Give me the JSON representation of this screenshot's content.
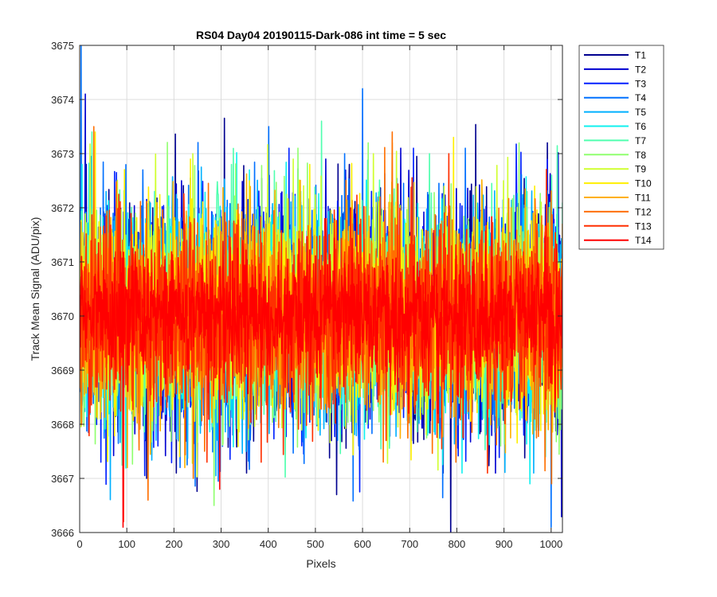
{
  "chart_data": {
    "type": "line",
    "title": "RS04 Day04 20190115-Dark-086 int time = 5 sec",
    "xlabel": "Pixels",
    "ylabel": "Track Mean Signal (ADU/pix)",
    "xlim": [
      0,
      1024
    ],
    "ylim": [
      3666,
      3675
    ],
    "xticks": [
      "0",
      "100",
      "200",
      "300",
      "400",
      "500",
      "600",
      "700",
      "800",
      "900",
      "1000"
    ],
    "yticks": [
      "3666",
      "3667",
      "3668",
      "3669",
      "3670",
      "3671",
      "3672",
      "3673",
      "3674",
      "3675"
    ],
    "grid": true,
    "legend_position": "outside-right-top",
    "series": [
      {
        "name": "T1",
        "color": "#00008f",
        "sigma": 1.0,
        "mean": 3670.0,
        "points": [
          [
            0,
            3670.0
          ],
          [
            14,
            3672.8
          ],
          [
            142,
            3667.0
          ],
          [
            205,
            3667.1
          ],
          [
            354,
            3667.1
          ],
          [
            545,
            3666.7
          ],
          [
            572,
            3672.8
          ],
          [
            771,
            3667.1
          ],
          [
            992,
            3673.2
          ]
        ]
      },
      {
        "name": "T2",
        "color": "#0000d0",
        "sigma": 1.0,
        "mean": 3670.0,
        "points": [
          [
            0,
            3670.0
          ],
          [
            12,
            3674.1
          ],
          [
            216,
            3672.5
          ],
          [
            402,
            3672.6
          ],
          [
            522,
            3672.9
          ],
          [
            681,
            3673.1
          ],
          [
            882,
            3667.1
          ]
        ]
      },
      {
        "name": "T3",
        "color": "#0020ff",
        "sigma": 1.0,
        "mean": 3670.0,
        "points": [
          [
            0,
            3670.0
          ],
          [
            45,
            3667.3
          ],
          [
            166,
            3667.6
          ],
          [
            444,
            3673.1
          ],
          [
            592,
            3667.6
          ],
          [
            708,
            3673.1
          ],
          [
            942,
            3667.8
          ]
        ]
      },
      {
        "name": "T4",
        "color": "#0070ff",
        "sigma": 1.05,
        "mean": 3670.0,
        "points": [
          [
            0,
            3670.0
          ],
          [
            3,
            3675.0
          ],
          [
            134,
            3672.7
          ],
          [
            401,
            3673.5
          ],
          [
            562,
            3673.0
          ],
          [
            600,
            3674.2
          ],
          [
            818,
            3673.1
          ],
          [
            1000,
            3666.1
          ]
        ]
      },
      {
        "name": "T5",
        "color": "#00b0ff",
        "sigma": 1.0,
        "mean": 3670.0,
        "points": [
          [
            0,
            3670.0
          ],
          [
            56,
            3672.3
          ],
          [
            281,
            3667.9
          ],
          [
            510,
            3667.8
          ],
          [
            657,
            3667.6
          ],
          [
            963,
            3667.1
          ]
        ]
      },
      {
        "name": "T6",
        "color": "#10f0ef",
        "sigma": 0.95,
        "mean": 3670.0,
        "points": [
          [
            0,
            3670.0
          ],
          [
            5,
            3672.8
          ],
          [
            360,
            3672.7
          ],
          [
            738,
            3667.8
          ],
          [
            811,
            3667.1
          ],
          [
            955,
            3666.9
          ]
        ]
      },
      {
        "name": "T7",
        "color": "#50ffaf",
        "sigma": 0.95,
        "mean": 3670.0,
        "points": [
          [
            0,
            3670.0
          ],
          [
            26,
            3673.4
          ],
          [
            322,
            3672.8
          ],
          [
            513,
            3673.6
          ],
          [
            742,
            3673.0
          ],
          [
            988,
            3667.4
          ]
        ]
      },
      {
        "name": "T8",
        "color": "#90ff6f",
        "sigma": 0.95,
        "mean": 3670.0,
        "points": [
          [
            0,
            3670.0
          ],
          [
            285,
            3666.5
          ],
          [
            463,
            3673.1
          ],
          [
            612,
            3673.2
          ],
          [
            893,
            3667.6
          ]
        ]
      },
      {
        "name": "T9",
        "color": "#d0ff2f",
        "sigma": 0.95,
        "mean": 3670.1,
        "points": [
          [
            0,
            3670.0
          ],
          [
            240,
            3673.0
          ],
          [
            453,
            3672.9
          ],
          [
            623,
            3673.0
          ],
          [
            899,
            3672.5
          ]
        ]
      },
      {
        "name": "T10",
        "color": "#ffef00",
        "sigma": 0.9,
        "mean": 3670.1,
        "points": [
          [
            0,
            3670.0
          ],
          [
            33,
            3673.4
          ],
          [
            235,
            3672.9
          ],
          [
            488,
            3672.8
          ],
          [
            793,
            3673.3
          ],
          [
            965,
            3672.4
          ]
        ]
      },
      {
        "name": "T11",
        "color": "#ffaf00",
        "sigma": 0.9,
        "mean": 3670.0,
        "points": [
          [
            0,
            3670.0
          ],
          [
            101,
            3667.2
          ],
          [
            223,
            3667.2
          ],
          [
            663,
            3673.2
          ],
          [
            915,
            3672.0
          ]
        ]
      },
      {
        "name": "T12",
        "color": "#ff6f00",
        "sigma": 0.9,
        "mean": 3670.0,
        "points": [
          [
            0,
            3670.0
          ],
          [
            30,
            3673.5
          ],
          [
            145,
            3666.6
          ],
          [
            241,
            3667.0
          ],
          [
            663,
            3673.4
          ],
          [
            1001,
            3666.9
          ]
        ]
      },
      {
        "name": "T13",
        "color": "#ff2f00",
        "sigma": 0.85,
        "mean": 3670.0,
        "points": [
          [
            0,
            3670.0
          ],
          [
            93,
            3666.2
          ],
          [
            270,
            3667.3
          ],
          [
            385,
            3667.3
          ],
          [
            650,
            3667.7
          ],
          [
            783,
            3673.0
          ],
          [
            865,
            3667.1
          ]
        ]
      },
      {
        "name": "T14",
        "color": "#ff0000",
        "sigma": 0.6,
        "mean": 3670.0,
        "points": [
          [
            0,
            3670.0
          ],
          [
            92,
            3666.1
          ],
          [
            297,
            3666.8
          ],
          [
            520,
            3671.8
          ],
          [
            760,
            3668.2
          ]
        ]
      }
    ]
  }
}
